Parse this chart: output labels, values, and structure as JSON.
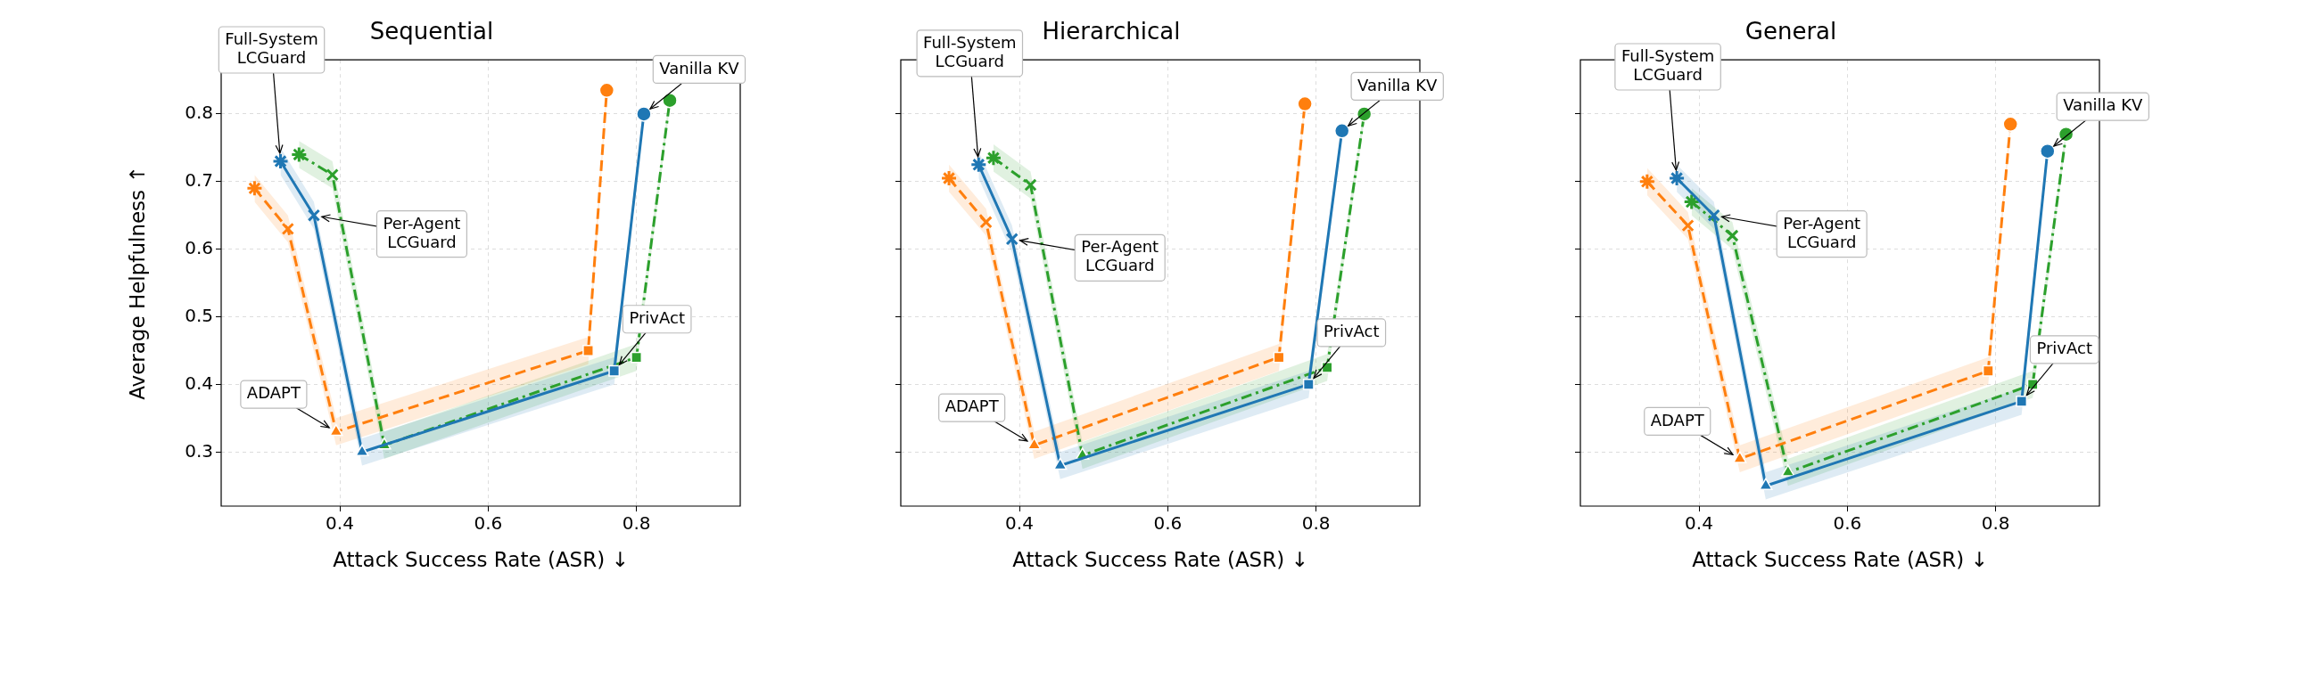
{
  "chart_data": [
    {
      "type": "line",
      "title": "Sequential",
      "xlabel": "Attack Success Rate (ASR) ↓",
      "ylabel": "Average Helpfulness ↑",
      "xlim": [
        0.24,
        0.94
      ],
      "ylim": [
        0.22,
        0.88
      ],
      "xticks": [
        0.4,
        0.6,
        0.8
      ],
      "yticks": [
        0.3,
        0.4,
        0.5,
        0.6,
        0.7,
        0.8
      ],
      "grid": true,
      "marker": [
        "star",
        "cross",
        "triangle",
        "square",
        "circle"
      ],
      "series": [
        {
          "color": "#1f77b4",
          "line_style": "solid",
          "x": [
            0.32,
            0.365,
            0.43,
            0.77,
            0.81
          ],
          "values": [
            0.73,
            0.65,
            0.3,
            0.42,
            0.8
          ],
          "lower": [
            0.71,
            0.63,
            0.28,
            0.4,
            0.79
          ],
          "upper": [
            0.75,
            0.67,
            0.32,
            0.44,
            0.81
          ]
        },
        {
          "color": "#ff7f0e",
          "line_style": "dashed",
          "x": [
            0.285,
            0.33,
            0.395,
            0.735,
            0.76
          ],
          "values": [
            0.69,
            0.63,
            0.33,
            0.45,
            0.835
          ],
          "lower": [
            0.67,
            0.61,
            0.31,
            0.43,
            0.825
          ],
          "upper": [
            0.71,
            0.65,
            0.35,
            0.47,
            0.845
          ]
        },
        {
          "color": "#2ca02c",
          "line_style": "dashdot",
          "x": [
            0.345,
            0.39,
            0.46,
            0.8,
            0.845
          ],
          "values": [
            0.74,
            0.71,
            0.31,
            0.44,
            0.82
          ],
          "lower": [
            0.72,
            0.69,
            0.29,
            0.42,
            0.81
          ],
          "upper": [
            0.76,
            0.73,
            0.33,
            0.46,
            0.83
          ]
        }
      ],
      "annotations": [
        {
          "text": "Full-System\nLCGuard",
          "x": 0.32,
          "y": 0.73
        },
        {
          "text": "Per-Agent\nLCGuard",
          "x": 0.365,
          "y": 0.65
        },
        {
          "text": "ADAPT",
          "x": 0.395,
          "y": 0.33
        },
        {
          "text": "PrivAct",
          "x": 0.77,
          "y": 0.42
        },
        {
          "text": "Vanilla KV",
          "x": 0.81,
          "y": 0.8
        }
      ]
    },
    {
      "type": "line",
      "title": "Hierarchical",
      "xlabel": "Attack Success Rate (ASR) ↓",
      "xlim": [
        0.24,
        0.94
      ],
      "ylim": [
        0.22,
        0.88
      ],
      "xticks": [
        0.4,
        0.6,
        0.8
      ],
      "yticks": [
        0.3,
        0.4,
        0.5,
        0.6,
        0.7,
        0.8
      ],
      "grid": true,
      "tick_labels": "x",
      "marker": [
        "star",
        "cross",
        "triangle",
        "square",
        "circle"
      ],
      "series": [
        {
          "color": "#1f77b4",
          "line_style": "solid",
          "x": [
            0.345,
            0.39,
            0.455,
            0.79,
            0.835
          ],
          "values": [
            0.725,
            0.615,
            0.28,
            0.4,
            0.775
          ],
          "lower": [
            0.705,
            0.595,
            0.26,
            0.38,
            0.765
          ],
          "upper": [
            0.745,
            0.635,
            0.3,
            0.42,
            0.785
          ]
        },
        {
          "color": "#ff7f0e",
          "line_style": "dashed",
          "x": [
            0.305,
            0.355,
            0.42,
            0.75,
            0.785
          ],
          "values": [
            0.705,
            0.64,
            0.31,
            0.44,
            0.815
          ],
          "lower": [
            0.685,
            0.62,
            0.29,
            0.42,
            0.805
          ],
          "upper": [
            0.725,
            0.66,
            0.33,
            0.46,
            0.825
          ]
        },
        {
          "color": "#2ca02c",
          "line_style": "dashdot",
          "x": [
            0.365,
            0.415,
            0.485,
            0.815,
            0.865
          ],
          "values": [
            0.735,
            0.695,
            0.295,
            0.425,
            0.8
          ],
          "lower": [
            0.715,
            0.675,
            0.275,
            0.405,
            0.79
          ],
          "upper": [
            0.755,
            0.715,
            0.315,
            0.445,
            0.81
          ]
        }
      ],
      "annotations": [
        {
          "text": "Full-System\nLCGuard",
          "x": 0.345,
          "y": 0.725
        },
        {
          "text": "Per-Agent\nLCGuard",
          "x": 0.39,
          "y": 0.615
        },
        {
          "text": "ADAPT",
          "x": 0.42,
          "y": 0.31
        },
        {
          "text": "PrivAct",
          "x": 0.79,
          "y": 0.4
        },
        {
          "text": "Vanilla KV",
          "x": 0.835,
          "y": 0.775
        }
      ]
    },
    {
      "type": "line",
      "title": "General",
      "xlabel": "Attack Success Rate (ASR) ↓",
      "xlim": [
        0.24,
        0.94
      ],
      "ylim": [
        0.22,
        0.88
      ],
      "xticks": [
        0.4,
        0.6,
        0.8
      ],
      "yticks": [
        0.3,
        0.4,
        0.5,
        0.6,
        0.7,
        0.8
      ],
      "grid": true,
      "tick_labels": "x",
      "marker": [
        "star",
        "cross",
        "triangle",
        "square",
        "circle"
      ],
      "series": [
        {
          "color": "#1f77b4",
          "line_style": "solid",
          "x": [
            0.37,
            0.42,
            0.49,
            0.835,
            0.87
          ],
          "values": [
            0.705,
            0.65,
            0.25,
            0.375,
            0.745
          ],
          "lower": [
            0.685,
            0.63,
            0.23,
            0.355,
            0.735
          ],
          "upper": [
            0.725,
            0.67,
            0.27,
            0.395,
            0.755
          ]
        },
        {
          "color": "#ff7f0e",
          "line_style": "dashed",
          "x": [
            0.33,
            0.385,
            0.455,
            0.79,
            0.82
          ],
          "values": [
            0.7,
            0.635,
            0.29,
            0.42,
            0.785
          ],
          "lower": [
            0.68,
            0.615,
            0.27,
            0.4,
            0.775
          ],
          "upper": [
            0.72,
            0.655,
            0.31,
            0.44,
            0.795
          ]
        },
        {
          "color": "#2ca02c",
          "line_style": "dashdot",
          "x": [
            0.39,
            0.445,
            0.52,
            0.85,
            0.895
          ],
          "values": [
            0.67,
            0.62,
            0.27,
            0.4,
            0.77
          ],
          "lower": [
            0.65,
            0.6,
            0.25,
            0.38,
            0.76
          ],
          "upper": [
            0.69,
            0.64,
            0.29,
            0.42,
            0.78
          ]
        }
      ],
      "annotations": [
        {
          "text": "Full-System\nLCGuard",
          "x": 0.37,
          "y": 0.705
        },
        {
          "text": "Per-Agent\nLCGuard",
          "x": 0.42,
          "y": 0.65
        },
        {
          "text": "ADAPT",
          "x": 0.455,
          "y": 0.29
        },
        {
          "text": "PrivAct",
          "x": 0.835,
          "y": 0.375
        },
        {
          "text": "Vanilla KV",
          "x": 0.87,
          "y": 0.745
        }
      ]
    }
  ]
}
